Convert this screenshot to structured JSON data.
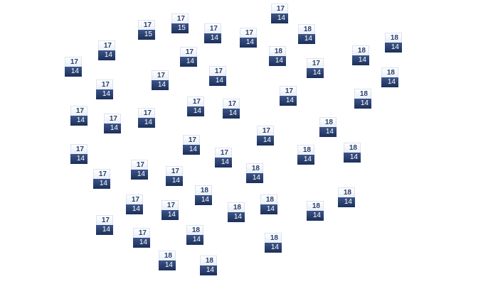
{
  "map": {
    "colors": {
      "top_bg": "#f2f5fb",
      "top_text": "#2a3f6b",
      "bottom_bg": "#263d6e",
      "bottom_text": "#ffffff"
    },
    "markers": [
      {
        "top": "17",
        "bottom": "15"
      },
      {
        "top": "17",
        "bottom": "15"
      },
      {
        "top": "17",
        "bottom": "14"
      },
      {
        "top": "17",
        "bottom": "14"
      },
      {
        "top": "17",
        "bottom": "14"
      },
      {
        "top": "18",
        "bottom": "14"
      },
      {
        "top": "17",
        "bottom": "14"
      },
      {
        "top": "17",
        "bottom": "14"
      },
      {
        "top": "17",
        "bottom": "14"
      },
      {
        "top": "18",
        "bottom": "14"
      },
      {
        "top": "17",
        "bottom": "14"
      },
      {
        "top": "18",
        "bottom": "14"
      },
      {
        "top": "18",
        "bottom": "14"
      },
      {
        "top": "17",
        "bottom": "14"
      },
      {
        "top": "17",
        "bottom": "14"
      },
      {
        "top": "17",
        "bottom": "14"
      },
      {
        "top": "18",
        "bottom": "14"
      },
      {
        "top": "17",
        "bottom": "14"
      },
      {
        "top": "18",
        "bottom": "14"
      },
      {
        "top": "17",
        "bottom": "14"
      },
      {
        "top": "17",
        "bottom": "14"
      },
      {
        "top": "17",
        "bottom": "14"
      },
      {
        "top": "17",
        "bottom": "14"
      },
      {
        "top": "17",
        "bottom": "14"
      },
      {
        "top": "18",
        "bottom": "14"
      },
      {
        "top": "17",
        "bottom": "14"
      },
      {
        "top": "17",
        "bottom": "14"
      },
      {
        "top": "17",
        "bottom": "14"
      },
      {
        "top": "17",
        "bottom": "14"
      },
      {
        "top": "18",
        "bottom": "14"
      },
      {
        "top": "18",
        "bottom": "14"
      },
      {
        "top": "17",
        "bottom": "14"
      },
      {
        "top": "18",
        "bottom": "14"
      },
      {
        "top": "17",
        "bottom": "14"
      },
      {
        "top": "17",
        "bottom": "14"
      },
      {
        "top": "18",
        "bottom": "14"
      },
      {
        "top": "18",
        "bottom": "14"
      },
      {
        "top": "17",
        "bottom": "14"
      },
      {
        "top": "18",
        "bottom": "14"
      },
      {
        "top": "17",
        "bottom": "14"
      },
      {
        "top": "18",
        "bottom": "14"
      },
      {
        "top": "18",
        "bottom": "14"
      },
      {
        "top": "17",
        "bottom": "14"
      },
      {
        "top": "18",
        "bottom": "14"
      },
      {
        "top": "17",
        "bottom": "14"
      },
      {
        "top": "18",
        "bottom": "14"
      },
      {
        "top": "18",
        "bottom": "14"
      },
      {
        "top": "18",
        "bottom": "14"
      }
    ]
  }
}
